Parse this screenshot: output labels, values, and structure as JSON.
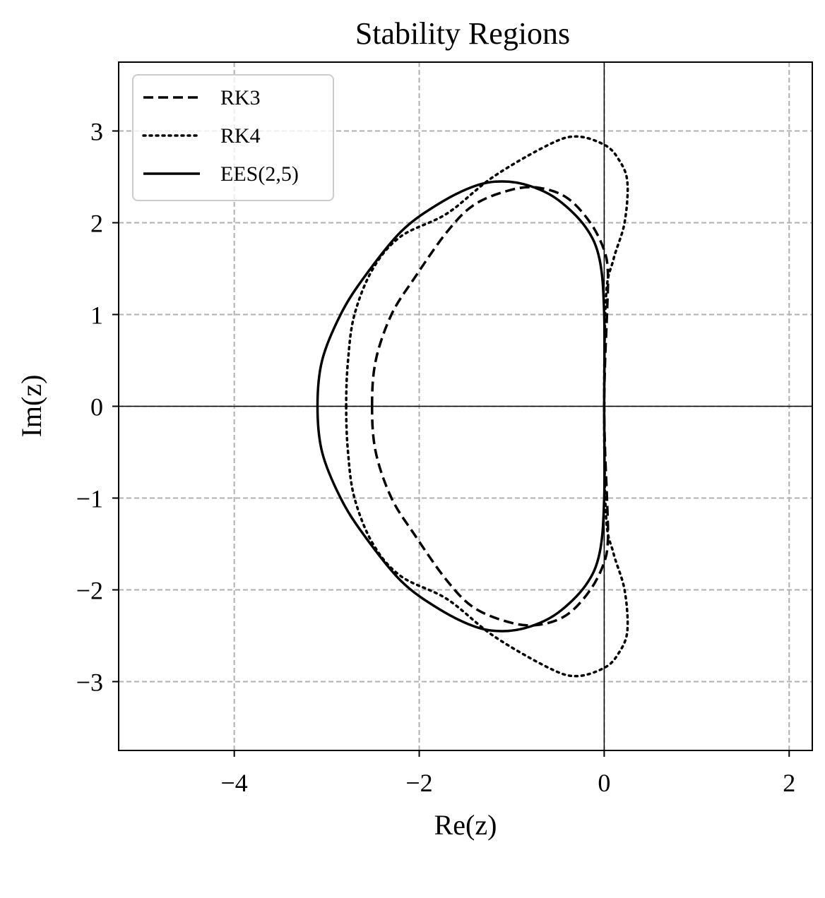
{
  "chart_data": {
    "type": "line",
    "title": "Stability Regions",
    "xlabel": "Re(z)",
    "ylabel": "Im(z)",
    "xlim": [
      -5.25,
      2.25
    ],
    "ylim": [
      -3.75,
      3.75
    ],
    "xticks": [
      -4,
      -2,
      0,
      2
    ],
    "yticks": [
      -3,
      -2,
      -1,
      0,
      1,
      2,
      3
    ],
    "xtick_labels": [
      "−4",
      "−2",
      "0",
      "2"
    ],
    "ytick_labels": [
      "−3",
      "−2",
      "−1",
      "0",
      "1",
      "2",
      "3"
    ],
    "grid": true,
    "legend_position": "top-left",
    "series": [
      {
        "name": "RK3",
        "style": "dashed",
        "color": "#000000",
        "points": [
          [
            -2.51,
            0.0
          ],
          [
            -2.47,
            0.5
          ],
          [
            -2.3,
            1.0
          ],
          [
            -2.05,
            1.4
          ],
          [
            -1.7,
            1.9
          ],
          [
            -1.4,
            2.2
          ],
          [
            -1.0,
            2.36
          ],
          [
            -0.7,
            2.38
          ],
          [
            -0.4,
            2.27
          ],
          [
            -0.15,
            2.0
          ],
          [
            0.0,
            1.7
          ],
          [
            0.04,
            1.45
          ],
          [
            0.03,
            1.0
          ],
          [
            0.01,
            0.5
          ],
          [
            0.0,
            0.0
          ]
        ]
      },
      {
        "name": "RK4",
        "style": "dotted",
        "color": "#000000",
        "points": [
          [
            -2.79,
            0.0
          ],
          [
            -2.77,
            0.5
          ],
          [
            -2.7,
            1.0
          ],
          [
            -2.5,
            1.5
          ],
          [
            -2.2,
            1.85
          ],
          [
            -1.7,
            2.1
          ],
          [
            -1.2,
            2.5
          ],
          [
            -0.6,
            2.85
          ],
          [
            -0.3,
            2.94
          ],
          [
            0.0,
            2.85
          ],
          [
            0.15,
            2.7
          ],
          [
            0.25,
            2.45
          ],
          [
            0.22,
            2.0
          ],
          [
            0.1,
            1.6
          ],
          [
            0.02,
            1.2
          ],
          [
            0.0,
            0.0
          ]
        ]
      },
      {
        "name": "EES(2,5)",
        "style": "solid",
        "color": "#000000",
        "points": [
          [
            -3.1,
            0.0
          ],
          [
            -3.05,
            0.5
          ],
          [
            -2.85,
            1.0
          ],
          [
            -2.6,
            1.4
          ],
          [
            -2.2,
            1.9
          ],
          [
            -1.8,
            2.2
          ],
          [
            -1.4,
            2.4
          ],
          [
            -1.1,
            2.45
          ],
          [
            -0.8,
            2.4
          ],
          [
            -0.5,
            2.25
          ],
          [
            -0.2,
            1.95
          ],
          [
            -0.05,
            1.6
          ],
          [
            0.0,
            1.0
          ],
          [
            0.0,
            0.0
          ]
        ]
      }
    ]
  }
}
